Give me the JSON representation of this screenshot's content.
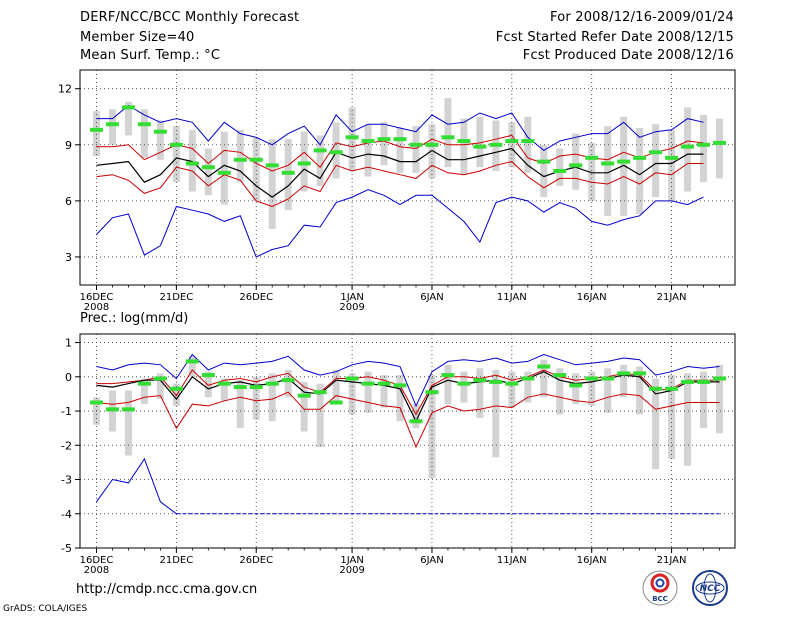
{
  "header": {
    "title": "DERF/NCC/BCC Monthly Forecast",
    "member": "Member Size=40",
    "variable": "Mean Surf. Temp.: °C",
    "period": "For 2008/12/16-2009/01/24",
    "started": "Fcst Started Refer Date 2008/12/15",
    "produced": "Fcst Produced Date 2008/12/16"
  },
  "footer": {
    "url": "http://cmdp.ncc.cma.gov.cn",
    "credit": "GrADS: COLA/IGES",
    "logo_bcc": "BCC",
    "logo_ncc": "NCC"
  },
  "colors": {
    "max_line": "#0000cc",
    "min_line": "#0000cc",
    "upper_line": "#cc0000",
    "lower_line": "#cc0000",
    "mean_line": "#000000",
    "median_marker": "#33dd33",
    "spread_box": "#d3d3d3",
    "grid": "#333333"
  },
  "chart_data": [
    {
      "type": "line",
      "title": "",
      "xlabel": "",
      "ylabel": "",
      "ylim": [
        1.5,
        13
      ],
      "yticks": [
        3,
        6,
        9,
        12
      ],
      "xticks": [
        {
          "day": 0,
          "label": "16DEC",
          "sub": "2008"
        },
        {
          "day": 5,
          "label": "21DEC",
          "sub": ""
        },
        {
          "day": 10,
          "label": "26DEC",
          "sub": ""
        },
        {
          "day": 16,
          "label": "1JAN",
          "sub": "2009"
        },
        {
          "day": 21,
          "label": "6JAN",
          "sub": ""
        },
        {
          "day": 26,
          "label": "11JAN",
          "sub": ""
        },
        {
          "day": 31,
          "label": "16JAN",
          "sub": ""
        },
        {
          "day": 36,
          "label": "21JAN",
          "sub": ""
        }
      ],
      "days": 40,
      "series": [
        {
          "name": "max",
          "values": [
            10.4,
            10.4,
            11.1,
            10.6,
            10.2,
            10.4,
            10.2,
            9.2,
            10.2,
            9.6,
            9.4,
            9.0,
            9.6,
            10.0,
            9.0,
            10.6,
            9.7,
            10.1,
            10.1,
            9.9,
            9.7,
            10.6,
            10.1,
            10.2,
            10.7,
            10.4,
            10.7,
            9.4,
            8.7,
            9.2,
            9.4,
            9.6,
            9.6,
            10.2,
            9.4,
            9.7,
            9.8,
            10.4,
            10.2,
            null
          ]
        },
        {
          "name": "upper",
          "values": [
            8.9,
            8.9,
            9.0,
            8.2,
            8.6,
            9.0,
            8.8,
            8.0,
            8.7,
            8.6,
            8.0,
            7.6,
            7.9,
            8.6,
            7.8,
            9.1,
            8.9,
            9.1,
            9.2,
            8.9,
            8.8,
            9.3,
            9.0,
            9.0,
            9.1,
            9.3,
            9.5,
            8.3,
            8.0,
            8.4,
            8.5,
            8.3,
            8.2,
            8.6,
            8.3,
            8.6,
            8.8,
            9.2,
            9.1,
            null
          ]
        },
        {
          "name": "mean",
          "values": [
            7.9,
            8.0,
            8.1,
            7.0,
            7.4,
            8.3,
            8.1,
            7.3,
            7.9,
            7.6,
            6.8,
            6.2,
            6.8,
            7.7,
            7.2,
            8.6,
            8.3,
            8.5,
            8.4,
            8.1,
            8.1,
            8.7,
            8.2,
            8.2,
            8.4,
            8.6,
            8.8,
            7.9,
            7.3,
            7.6,
            7.8,
            7.5,
            7.5,
            7.9,
            7.4,
            8.0,
            8.0,
            8.5,
            8.5,
            null
          ]
        },
        {
          "name": "lower",
          "values": [
            7.3,
            7.4,
            7.1,
            6.4,
            6.7,
            7.8,
            7.6,
            6.8,
            7.4,
            7.1,
            6.0,
            5.7,
            6.1,
            6.8,
            6.5,
            7.9,
            7.6,
            7.8,
            7.6,
            7.4,
            7.2,
            7.9,
            7.5,
            7.4,
            7.6,
            7.9,
            8.1,
            7.3,
            6.7,
            7.2,
            7.2,
            7.0,
            6.9,
            7.3,
            6.9,
            7.5,
            7.4,
            8.0,
            8.0,
            null
          ]
        },
        {
          "name": "min",
          "values": [
            4.2,
            5.1,
            5.3,
            3.1,
            3.6,
            5.7,
            5.5,
            5.3,
            4.9,
            5.2,
            3.0,
            3.4,
            3.6,
            4.7,
            4.6,
            5.9,
            6.2,
            6.6,
            6.3,
            5.8,
            6.3,
            6.3,
            5.6,
            4.9,
            3.8,
            5.9,
            6.2,
            6.0,
            5.4,
            5.9,
            5.6,
            4.9,
            4.7,
            5.0,
            5.2,
            6.0,
            6.0,
            5.8,
            6.2,
            null
          ]
        },
        {
          "name": "median",
          "values": [
            9.8,
            10.1,
            11.0,
            10.1,
            9.7,
            9.0,
            8.0,
            7.8,
            7.5,
            8.2,
            8.2,
            7.9,
            7.5,
            8.0,
            8.7,
            8.6,
            9.4,
            9.2,
            9.3,
            9.3,
            9.0,
            9.0,
            9.4,
            9.2,
            8.9,
            9.0,
            9.2,
            9.2,
            8.1,
            7.6,
            7.9,
            8.3,
            8.0,
            8.1,
            8.3,
            8.6,
            8.3,
            8.9,
            9.0,
            9.1
          ]
        },
        {
          "name": "box_low",
          "values": [
            8.4,
            9.0,
            9.5,
            8.3,
            8.2,
            7.0,
            6.5,
            6.3,
            5.8,
            7.0,
            6.0,
            4.5,
            5.5,
            6.5,
            6.8,
            7.2,
            7.6,
            7.3,
            7.9,
            7.5,
            7.5,
            7.2,
            7.8,
            7.4,
            7.8,
            7.6,
            7.8,
            7.5,
            6.2,
            6.8,
            6.6,
            6.0,
            5.2,
            5.2,
            5.3,
            6.2,
            6.0,
            6.5,
            7.0,
            7.2
          ]
        },
        {
          "name": "box_high",
          "values": [
            10.8,
            10.9,
            11.3,
            10.9,
            10.3,
            10.0,
            9.8,
            8.8,
            9.7,
            9.8,
            9.4,
            9.3,
            9.3,
            9.7,
            9.5,
            10.2,
            11.0,
            10.1,
            10.2,
            9.9,
            10.0,
            10.1,
            11.5,
            10.4,
            10.5,
            10.3,
            10.2,
            10.5,
            9.0,
            8.8,
            9.6,
            9.1,
            10.0,
            10.5,
            9.9,
            10.1,
            9.8,
            11.0,
            10.6,
            10.4
          ]
        }
      ]
    },
    {
      "type": "line",
      "title": "Prec.: log(mm/d)",
      "xlabel": "",
      "ylabel": "",
      "ylim": [
        -5,
        1.25
      ],
      "yticks": [
        -5,
        -4,
        -3,
        -2,
        -1,
        0,
        1
      ],
      "xticks": [
        {
          "day": 0,
          "label": "16DEC",
          "sub": "2008"
        },
        {
          "day": 5,
          "label": "21DEC",
          "sub": ""
        },
        {
          "day": 10,
          "label": "26DEC",
          "sub": ""
        },
        {
          "day": 16,
          "label": "1JAN",
          "sub": "2009"
        },
        {
          "day": 21,
          "label": "6JAN",
          "sub": ""
        },
        {
          "day": 26,
          "label": "11JAN",
          "sub": ""
        },
        {
          "day": 31,
          "label": "16JAN",
          "sub": ""
        },
        {
          "day": 36,
          "label": "21JAN",
          "sub": ""
        }
      ],
      "days": 40,
      "series": [
        {
          "name": "max",
          "values": [
            0.3,
            0.2,
            0.35,
            0.4,
            0.35,
            -0.05,
            0.65,
            0.2,
            0.4,
            0.35,
            0.4,
            0.45,
            0.6,
            0.2,
            0.05,
            0.15,
            0.35,
            0.45,
            0.4,
            0.3,
            -0.85,
            0.15,
            0.45,
            0.5,
            0.45,
            0.55,
            0.4,
            0.45,
            0.65,
            0.5,
            0.35,
            0.4,
            0.45,
            0.55,
            0.5,
            0.05,
            0.15,
            0.3,
            0.25,
            0.3
          ]
        },
        {
          "name": "upper",
          "values": [
            -0.2,
            -0.2,
            -0.15,
            -0.1,
            0.0,
            -0.55,
            0.2,
            -0.25,
            -0.1,
            -0.05,
            -0.15,
            0.0,
            0.1,
            -0.3,
            -0.45,
            -0.05,
            -0.05,
            0.0,
            -0.1,
            -0.25,
            -1.1,
            -0.25,
            0.0,
            0.0,
            -0.05,
            0.05,
            -0.1,
            0.0,
            0.2,
            0.0,
            -0.1,
            -0.05,
            0.0,
            0.1,
            0.05,
            -0.4,
            -0.35,
            -0.1,
            -0.1,
            -0.1
          ]
        },
        {
          "name": "mean",
          "values": [
            -0.25,
            -0.3,
            -0.2,
            -0.1,
            -0.1,
            -0.65,
            0.0,
            -0.35,
            -0.2,
            -0.15,
            -0.25,
            -0.2,
            -0.05,
            -0.45,
            -0.5,
            -0.1,
            -0.15,
            -0.2,
            -0.25,
            -0.35,
            -1.3,
            -0.3,
            -0.1,
            -0.2,
            -0.15,
            -0.1,
            -0.2,
            -0.05,
            0.15,
            -0.1,
            -0.2,
            -0.15,
            -0.05,
            0.05,
            0.0,
            -0.5,
            -0.4,
            -0.15,
            -0.15,
            -0.15
          ]
        },
        {
          "name": "lower",
          "values": [
            -0.75,
            -0.8,
            -0.75,
            -0.6,
            -0.55,
            -1.5,
            -0.8,
            -0.85,
            -0.7,
            -0.6,
            -0.7,
            -0.65,
            -0.45,
            -0.95,
            -0.95,
            -0.55,
            -0.65,
            -0.75,
            -0.85,
            -0.9,
            -2.05,
            -1.05,
            -0.85,
            -1.0,
            -0.95,
            -0.85,
            -0.9,
            -0.6,
            -0.5,
            -0.6,
            -0.7,
            -0.75,
            -0.6,
            -0.5,
            -0.55,
            -0.95,
            -0.85,
            -0.75,
            -0.75,
            -0.75
          ]
        },
        {
          "name": "min",
          "values": [
            -3.65,
            -3.0,
            -3.1,
            -2.4,
            -3.65,
            -4.0,
            -4.0,
            -4.0,
            -4.0,
            -4.0,
            -4.0,
            -4.0,
            -4.0,
            -4.0,
            -4.0,
            -4.0,
            -4.0,
            -4.0,
            -4.0,
            -4.0,
            -4.0,
            -4.0,
            -4.0,
            -4.0,
            -4.0,
            -4.0,
            -4.0,
            -4.0,
            -4.0,
            -4.0,
            -4.0,
            -4.0,
            -4.0,
            -4.0,
            -4.0,
            -4.0,
            -4.0,
            -4.0,
            -4.0,
            -4.0
          ]
        },
        {
          "name": "median",
          "values": [
            -0.75,
            -0.95,
            -0.95,
            -0.2,
            -0.05,
            -0.35,
            0.45,
            0.05,
            -0.2,
            -0.3,
            -0.3,
            -0.2,
            -0.1,
            -0.55,
            -0.45,
            -0.75,
            -0.05,
            -0.2,
            -0.2,
            -0.25,
            -1.3,
            -0.45,
            0.05,
            -0.2,
            -0.1,
            -0.15,
            -0.2,
            -0.05,
            0.3,
            0.05,
            -0.25,
            -0.05,
            -0.05,
            0.1,
            0.1,
            -0.35,
            -0.35,
            -0.15,
            -0.15,
            -0.05
          ]
        },
        {
          "name": "box_low",
          "values": [
            -1.4,
            -1.6,
            -2.3,
            -0.8,
            -0.65,
            -0.85,
            0.0,
            -0.6,
            -0.7,
            -1.5,
            -1.25,
            -1.3,
            -0.6,
            -1.6,
            -2.05,
            -0.8,
            -1.1,
            -1.05,
            -0.9,
            -1.3,
            -1.5,
            -2.95,
            -0.8,
            -0.75,
            -1.2,
            -2.35,
            -0.9,
            -0.75,
            -0.6,
            -1.1,
            -0.8,
            -0.85,
            -1.05,
            -0.6,
            -1.1,
            -2.7,
            -2.4,
            -2.6,
            -1.5,
            -1.65
          ]
        },
        {
          "name": "box_high",
          "values": [
            -0.6,
            -0.4,
            -0.4,
            -0.05,
            0.1,
            -0.2,
            0.6,
            0.15,
            -0.05,
            -0.1,
            0.0,
            0.1,
            0.2,
            -0.15,
            -0.2,
            0.2,
            0.1,
            0.15,
            0.05,
            0.05,
            -0.8,
            0.05,
            0.35,
            0.15,
            0.25,
            0.2,
            0.15,
            0.15,
            0.5,
            0.25,
            0.1,
            0.15,
            0.25,
            0.35,
            0.3,
            -0.05,
            0.05,
            0.1,
            0.15,
            0.35
          ]
        }
      ]
    }
  ]
}
